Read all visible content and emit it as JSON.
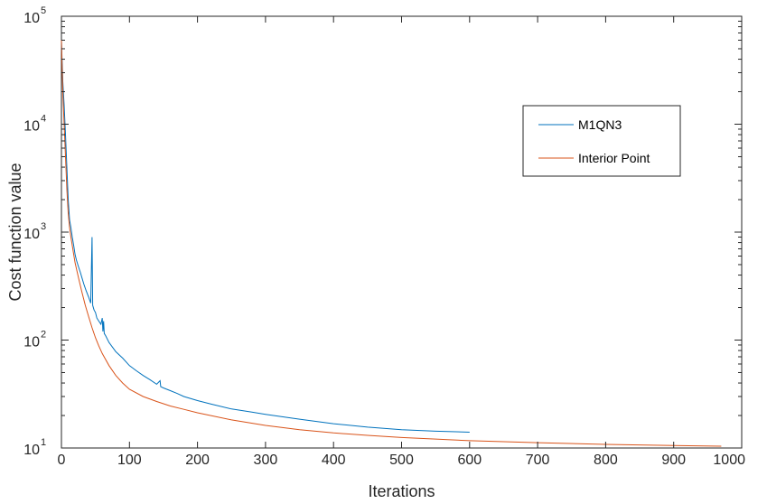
{
  "chart_data": {
    "type": "line",
    "xlabel": "Iterations",
    "ylabel": "Cost function value",
    "xlim": [
      0,
      1000
    ],
    "ylim": [
      10,
      100000
    ],
    "yscale": "log",
    "grid": false,
    "legend_position": "top-right",
    "x_ticks": [
      0,
      100,
      200,
      300,
      400,
      500,
      600,
      700,
      800,
      900,
      1000
    ],
    "x_tick_labels": [
      "0",
      "100",
      "200",
      "300",
      "400",
      "500",
      "600",
      "700",
      "800",
      "900",
      "1000"
    ],
    "y_ticks": [
      {
        "value": 10,
        "base": "10",
        "exp": "1"
      },
      {
        "value": 100,
        "base": "10",
        "exp": "2"
      },
      {
        "value": 1000,
        "base": "10",
        "exp": "3"
      },
      {
        "value": 10000,
        "base": "10",
        "exp": "4"
      },
      {
        "value": 100000,
        "base": "10",
        "exp": "5"
      }
    ],
    "series": [
      {
        "name": "M1QN3",
        "color": "#0072BD",
        "points": [
          [
            0,
            60000
          ],
          [
            2,
            25000
          ],
          [
            4,
            15000
          ],
          [
            6,
            8000
          ],
          [
            8,
            4000
          ],
          [
            10,
            2000
          ],
          [
            12,
            1300
          ],
          [
            14,
            1100
          ],
          [
            16,
            900
          ],
          [
            18,
            750
          ],
          [
            20,
            620
          ],
          [
            22,
            550
          ],
          [
            25,
            480
          ],
          [
            28,
            420
          ],
          [
            30,
            380
          ],
          [
            33,
            330
          ],
          [
            36,
            290
          ],
          [
            40,
            250
          ],
          [
            43,
            220
          ],
          [
            45,
            900
          ],
          [
            46,
            210
          ],
          [
            48,
            190
          ],
          [
            50,
            180
          ],
          [
            52,
            160
          ],
          [
            55,
            150
          ],
          [
            58,
            140
          ],
          [
            60,
            160
          ],
          [
            61,
            120
          ],
          [
            62,
            150
          ],
          [
            63,
            115
          ],
          [
            65,
            110
          ],
          [
            70,
            95
          ],
          [
            80,
            78
          ],
          [
            90,
            68
          ],
          [
            100,
            58
          ],
          [
            110,
            52
          ],
          [
            120,
            47
          ],
          [
            130,
            43
          ],
          [
            140,
            39
          ],
          [
            145,
            42
          ],
          [
            146,
            37
          ],
          [
            150,
            36
          ],
          [
            160,
            34
          ],
          [
            170,
            32
          ],
          [
            180,
            30
          ],
          [
            200,
            27.5
          ],
          [
            220,
            25.5
          ],
          [
            250,
            23
          ],
          [
            280,
            21.5
          ],
          [
            300,
            20.5
          ],
          [
            350,
            18.5
          ],
          [
            400,
            16.8
          ],
          [
            450,
            15.6
          ],
          [
            500,
            14.8
          ],
          [
            550,
            14.3
          ],
          [
            600,
            14.0
          ]
        ]
      },
      {
        "name": "Interior Point",
        "color": "#D95319",
        "points": [
          [
            0,
            60000
          ],
          [
            2,
            20000
          ],
          [
            4,
            10000
          ],
          [
            6,
            5000
          ],
          [
            8,
            2500
          ],
          [
            10,
            1500
          ],
          [
            12,
            1100
          ],
          [
            14,
            900
          ],
          [
            16,
            750
          ],
          [
            18,
            620
          ],
          [
            20,
            520
          ],
          [
            25,
            380
          ],
          [
            30,
            280
          ],
          [
            35,
            210
          ],
          [
            40,
            165
          ],
          [
            45,
            130
          ],
          [
            50,
            105
          ],
          [
            55,
            88
          ],
          [
            60,
            75
          ],
          [
            70,
            58
          ],
          [
            80,
            47
          ],
          [
            90,
            40
          ],
          [
            100,
            35
          ],
          [
            120,
            30
          ],
          [
            140,
            27
          ],
          [
            160,
            24.5
          ],
          [
            180,
            22.8
          ],
          [
            200,
            21.2
          ],
          [
            250,
            18.2
          ],
          [
            300,
            16.2
          ],
          [
            350,
            14.8
          ],
          [
            400,
            13.8
          ],
          [
            450,
            13.1
          ],
          [
            500,
            12.5
          ],
          [
            550,
            12.1
          ],
          [
            600,
            11.7
          ],
          [
            700,
            11.2
          ],
          [
            800,
            10.8
          ],
          [
            900,
            10.55
          ],
          [
            970,
            10.4
          ]
        ]
      }
    ]
  }
}
